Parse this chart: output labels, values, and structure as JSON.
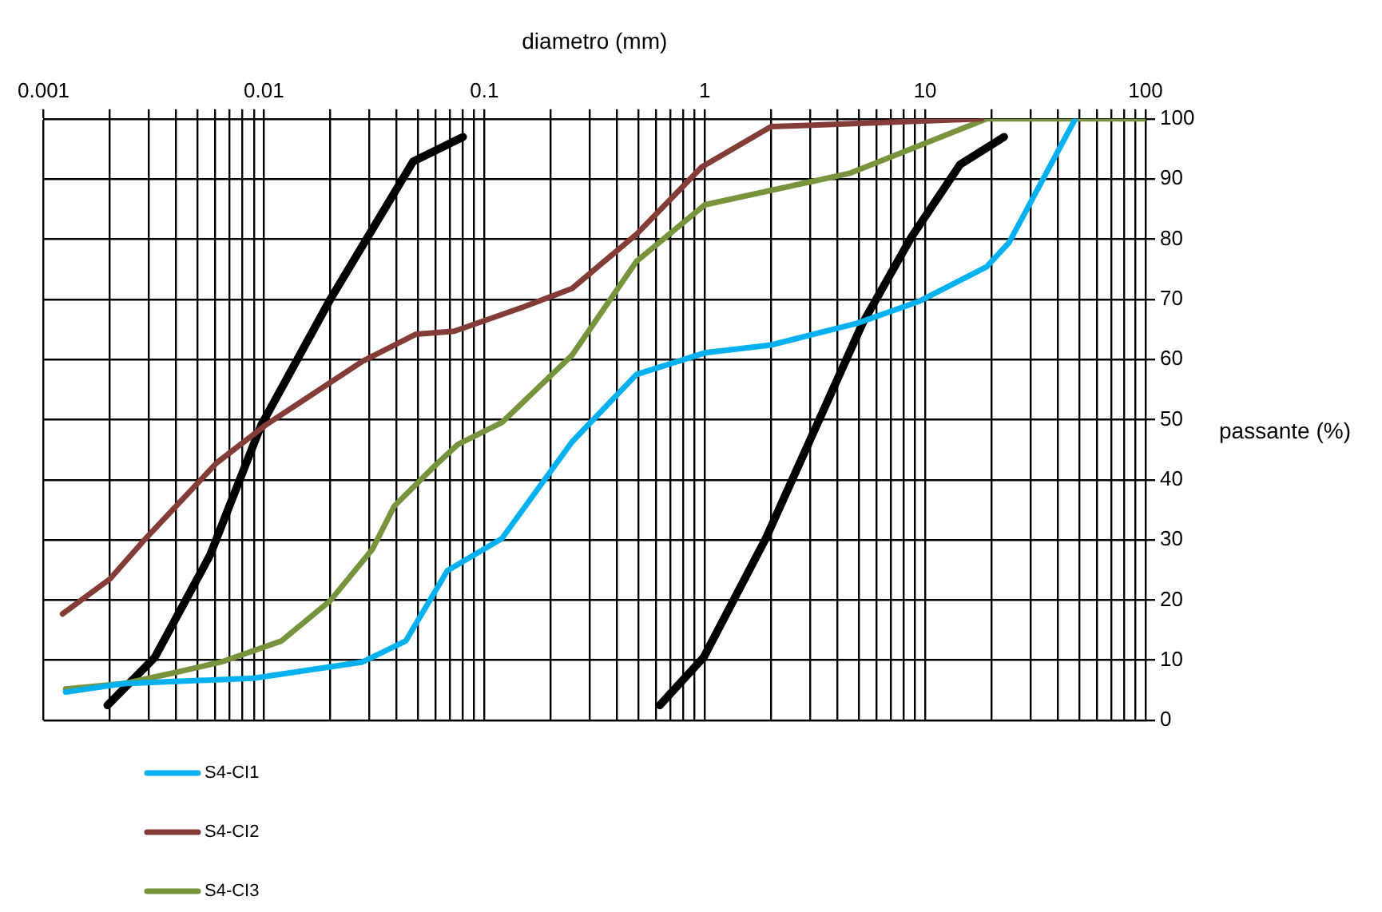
{
  "chart_data": {
    "type": "line",
    "xlabel": "diametro (mm)",
    "ylabel": "passante (%)",
    "log": "x",
    "grid": true,
    "legend": "bottom left",
    "marker": "none",
    "line_style": "solid",
    "xlim": [
      0.001,
      100
    ],
    "ylim": [
      0,
      100
    ],
    "xticks": [
      0.001,
      {
        "value": 0.002,
        "label": null
      },
      {
        "value": 0.003,
        "label": null
      },
      {
        "value": 0.004,
        "label": null
      },
      {
        "value": 0.005,
        "label": null
      },
      {
        "value": 0.006,
        "label": null
      },
      {
        "value": 0.007,
        "label": null
      },
      {
        "value": 0.008,
        "label": null
      },
      {
        "value": 0.009,
        "label": null
      },
      0.01,
      {
        "value": 0.02,
        "label": null
      },
      {
        "value": 0.03,
        "label": null
      },
      {
        "value": 0.04,
        "label": null
      },
      {
        "value": 0.05,
        "label": null
      },
      {
        "value": 0.06,
        "label": null
      },
      {
        "value": 0.07,
        "label": null
      },
      {
        "value": 0.08,
        "label": null
      },
      {
        "value": 0.09,
        "label": null
      },
      0.1,
      {
        "value": 0.2,
        "label": null
      },
      {
        "value": 0.3,
        "label": null
      },
      {
        "value": 0.4,
        "label": null
      },
      {
        "value": 0.5,
        "label": null
      },
      {
        "value": 0.6,
        "label": null
      },
      {
        "value": 0.7,
        "label": null
      },
      {
        "value": 0.8,
        "label": null
      },
      {
        "value": 0.9,
        "label": null
      },
      1,
      {
        "value": 2,
        "label": null
      },
      {
        "value": 3,
        "label": null
      },
      {
        "value": 4,
        "label": null
      },
      {
        "value": 5,
        "label": null
      },
      {
        "value": 6,
        "label": null
      },
      {
        "value": 7,
        "label": null
      },
      {
        "value": 8,
        "label": null
      },
      {
        "value": 9,
        "label": null
      },
      10,
      {
        "value": 20,
        "label": null
      },
      {
        "value": 30,
        "label": null
      },
      {
        "value": 40,
        "label": null
      },
      {
        "value": 50,
        "label": null
      },
      {
        "value": 60,
        "label": null
      },
      {
        "value": 70,
        "label": null
      },
      {
        "value": 80,
        "label": null
      },
      {
        "value": 90,
        "label": null
      },
      100
    ],
    "yticks": [
      0,
      10,
      20,
      30,
      40,
      50,
      60,
      70,
      80,
      90,
      100
    ],
    "series": [
      {
        "name": "S4-CI1",
        "color": "#00b0f0",
        "x": [
          0.00126,
          0.0023,
          0.009,
          0.028,
          0.044,
          0.068,
          0.12,
          0.25,
          0.49,
          1.0,
          2.0,
          4.9,
          9.3,
          19,
          24,
          48
        ],
        "values": [
          4.7,
          6.1,
          7.0,
          9.7,
          13.2,
          24.9,
          30.2,
          46.3,
          57.5,
          61.1,
          62.4,
          66,
          69.6,
          75.4,
          79.4,
          100
        ]
      },
      {
        "name": "S4-CI2",
        "color": "#843c39",
        "x": [
          0.00122,
          0.002,
          0.0029,
          0.0061,
          0.0101,
          0.028,
          0.049,
          0.073,
          0.15,
          0.25,
          0.49,
          0.97,
          2.0,
          18
        ],
        "values": [
          17.7,
          23.5,
          30.2,
          42.8,
          49,
          59.7,
          64.2,
          64.7,
          68.7,
          71.8,
          80.8,
          92,
          98.7,
          100
        ]
      },
      {
        "name": "S4-CI3",
        "color": "#77933c",
        "x": [
          0.00126,
          0.0023,
          0.0039,
          0.0064,
          0.012,
          0.02,
          0.031,
          0.039,
          0.058,
          0.076,
          0.12,
          0.25,
          0.49,
          1.0,
          4.6,
          19,
          100
        ],
        "values": [
          5.2,
          6.1,
          7.9,
          9.7,
          13.2,
          19.9,
          28.4,
          35.6,
          41.9,
          45.9,
          49.5,
          60.7,
          76.3,
          85.7,
          91,
          100,
          100
        ]
      },
      {
        "color": "#000000",
        "x": [
          0.00195,
          0.0032,
          0.0057,
          0.0097,
          0.02,
          0.0475,
          0.08
        ],
        "values": [
          2.5,
          10.5,
          27.5,
          49,
          70,
          92.9,
          97
        ]
      },
      {
        "color": "#000000",
        "x": [
          0.625,
          0.99,
          1.89,
          5.2,
          8.65,
          14.4,
          22.8
        ],
        "values": [
          2.5,
          10.5,
          30.2,
          66,
          80.3,
          92.4,
          97
        ]
      }
    ]
  }
}
